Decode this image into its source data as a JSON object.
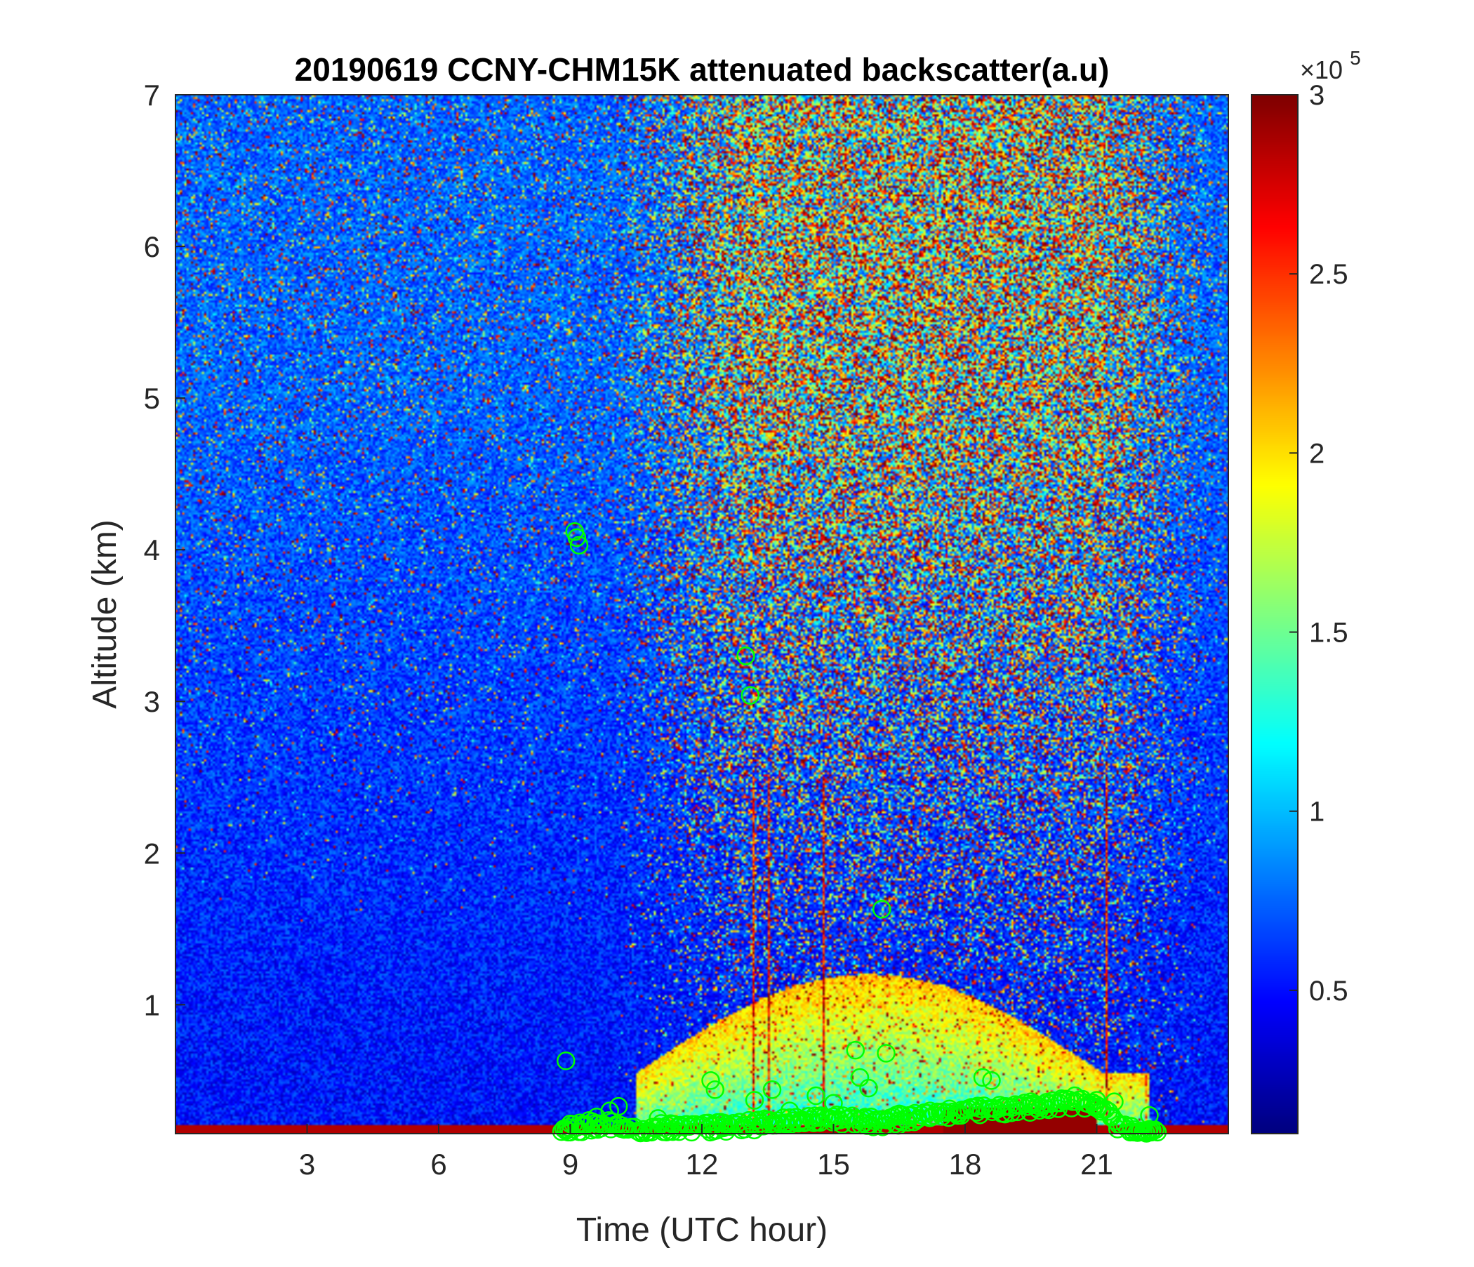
{
  "chart_data": {
    "type": "heatmap",
    "title": "20190619 CCNY-CHM15K attenuated backscatter(a.u)",
    "xlabel": "Time (UTC hour)",
    "ylabel": "Altitude (km)",
    "xlim": [
      0,
      24
    ],
    "ylim": [
      0.15,
      7
    ],
    "xticks": [
      3,
      6,
      9,
      12,
      15,
      18,
      21
    ],
    "yticks": [
      1,
      2,
      3,
      4,
      5,
      6,
      7
    ],
    "colorbar": {
      "colormap": "jet",
      "exponent_label": "×10",
      "exponent_power": "5",
      "clim": [
        0.1,
        3
      ],
      "ticks": [
        0.5,
        1,
        1.5,
        2,
        2.5,
        3
      ],
      "tick_labels": [
        "0.5",
        "1",
        "1.5",
        "2",
        "2.5",
        "3"
      ]
    },
    "marker_color": "#00ff00",
    "pbl_markers": [
      {
        "x": 8.9,
        "y": 0.63
      },
      {
        "x": 9.1,
        "y": 4.12
      },
      {
        "x": 9.15,
        "y": 4.08
      },
      {
        "x": 9.2,
        "y": 4.03
      },
      {
        "x": 13.0,
        "y": 3.3
      },
      {
        "x": 13.1,
        "y": 3.04
      },
      {
        "x": 16.1,
        "y": 1.63
      },
      {
        "x": 15.5,
        "y": 0.7
      },
      {
        "x": 16.2,
        "y": 0.68
      },
      {
        "x": 12.2,
        "y": 0.5
      },
      {
        "x": 12.3,
        "y": 0.44
      },
      {
        "x": 13.6,
        "y": 0.44
      },
      {
        "x": 14.6,
        "y": 0.4
      },
      {
        "x": 15.6,
        "y": 0.52
      },
      {
        "x": 15.8,
        "y": 0.45
      },
      {
        "x": 18.4,
        "y": 0.52
      },
      {
        "x": 18.6,
        "y": 0.5
      },
      {
        "x": 20.5,
        "y": 0.4
      },
      {
        "x": 21.0,
        "y": 0.37
      },
      {
        "x": 21.4,
        "y": 0.36
      },
      {
        "x": 22.2,
        "y": 0.27
      },
      {
        "x": 8.9,
        "y": 0.18
      },
      {
        "x": 9.3,
        "y": 0.2
      },
      {
        "x": 9.6,
        "y": 0.26
      },
      {
        "x": 9.9,
        "y": 0.3
      },
      {
        "x": 10.1,
        "y": 0.33
      },
      {
        "x": 11.0,
        "y": 0.25
      },
      {
        "x": 11.5,
        "y": 0.2
      },
      {
        "x": 12.5,
        "y": 0.22
      },
      {
        "x": 13.2,
        "y": 0.37
      },
      {
        "x": 14.0,
        "y": 0.3
      },
      {
        "x": 15.0,
        "y": 0.35
      },
      {
        "x": 16.5,
        "y": 0.28
      },
      {
        "x": 17.2,
        "y": 0.3
      },
      {
        "x": 19.5,
        "y": 0.36
      },
      {
        "x": 20.2,
        "y": 0.38
      }
    ],
    "pbl_marker_band": [
      {
        "x": 8.8,
        "y": 0.16
      },
      {
        "x": 9.0,
        "y": 0.2
      },
      {
        "x": 9.5,
        "y": 0.22
      },
      {
        "x": 10.1,
        "y": 0.22
      },
      {
        "x": 10.6,
        "y": 0.16
      },
      {
        "x": 11.0,
        "y": 0.2
      },
      {
        "x": 12.0,
        "y": 0.2
      },
      {
        "x": 13.0,
        "y": 0.22
      },
      {
        "x": 14.0,
        "y": 0.24
      },
      {
        "x": 15.0,
        "y": 0.26
      },
      {
        "x": 16.0,
        "y": 0.24
      },
      {
        "x": 17.0,
        "y": 0.27
      },
      {
        "x": 18.0,
        "y": 0.31
      },
      {
        "x": 19.0,
        "y": 0.33
      },
      {
        "x": 20.0,
        "y": 0.35
      },
      {
        "x": 20.6,
        "y": 0.37
      },
      {
        "x": 21.2,
        "y": 0.32
      },
      {
        "x": 21.5,
        "y": 0.2
      },
      {
        "x": 22.0,
        "y": 0.17
      },
      {
        "x": 22.4,
        "y": 0.16
      }
    ]
  }
}
